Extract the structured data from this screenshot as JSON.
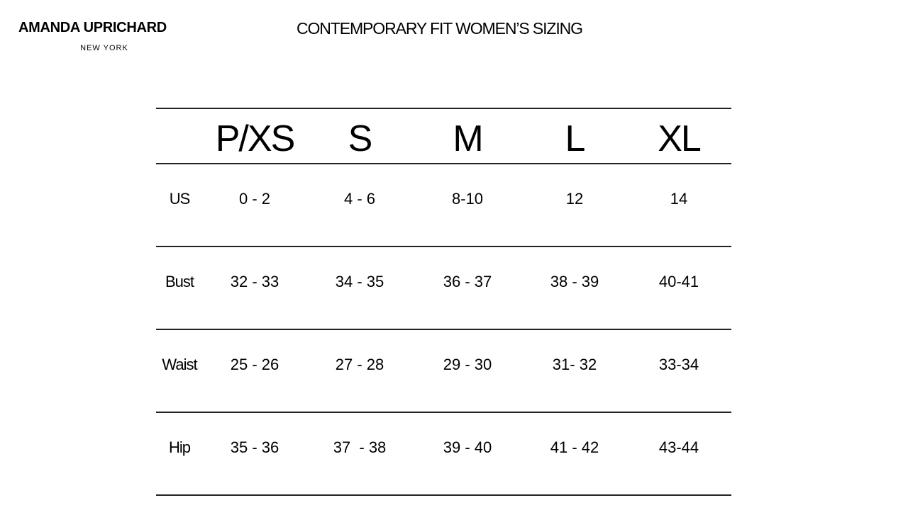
{
  "brand": {
    "name": "AMANDA UPRICHARD",
    "location": "NEW YORK"
  },
  "title": "CONTEMPORARY FIT WOMEN’S SIZING",
  "table": {
    "columns": [
      "P/XS",
      "S",
      "M",
      "L",
      "XL"
    ],
    "rows": [
      {
        "label": "US",
        "values": [
          "0 - 2",
          "4 - 6",
          "8-10",
          "12",
          "14"
        ]
      },
      {
        "label": "Bust",
        "values": [
          "32 - 33",
          "34 - 35",
          "36 - 37",
          "38 - 39",
          "40-41"
        ]
      },
      {
        "label": "Waist",
        "values": [
          "25 - 26",
          "27 - 28",
          "29 - 30",
          "31- 32",
          "33-34"
        ]
      },
      {
        "label": "Hip",
        "values": [
          "35 - 36",
          "37  - 38",
          "39 - 40",
          "41 - 42",
          "43-44"
        ]
      }
    ]
  }
}
